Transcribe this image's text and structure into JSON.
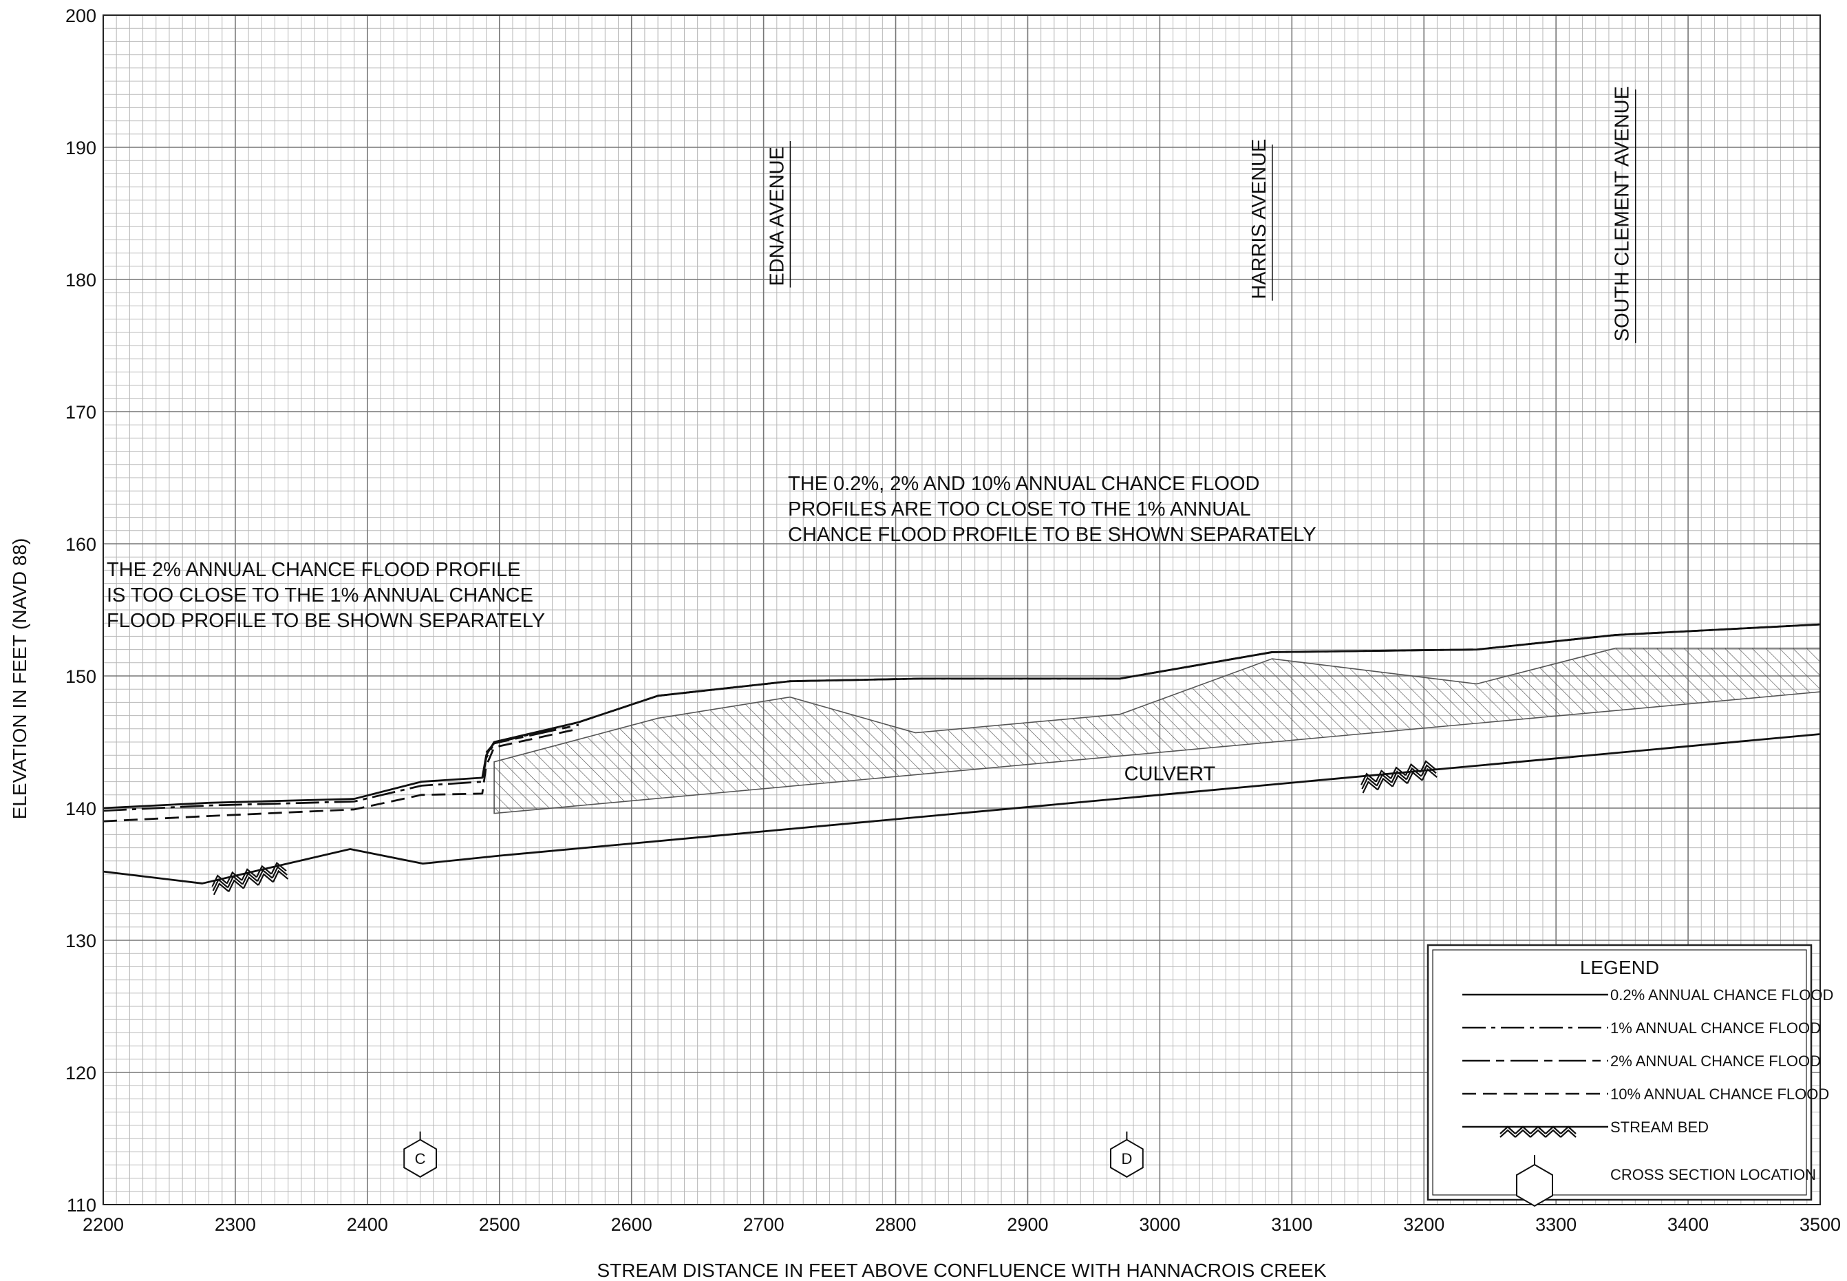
{
  "chart_data": {
    "type": "line",
    "xlabel": "STREAM DISTANCE IN FEET ABOVE CONFLUENCE WITH HANNACROIS CREEK",
    "ylabel": "ELEVATION IN FEET (NAVD 88)",
    "xlim": [
      2200,
      3500
    ],
    "ylim": [
      110,
      200
    ],
    "x_ticks": [
      "2200",
      "2300",
      "2400",
      "2500",
      "2600",
      "2700",
      "2800",
      "2900",
      "3000",
      "3100",
      "3200",
      "3300",
      "3400",
      "3500"
    ],
    "y_ticks": [
      "110",
      "120",
      "130",
      "140",
      "150",
      "160",
      "170",
      "180",
      "190",
      "200"
    ],
    "grid": true,
    "legend_position": "bottom-right",
    "series": [
      {
        "name": "0.2% ANNUAL CHANCE FLOOD",
        "style": "solid",
        "x": [
          2200,
          2280,
          2390,
          2441,
          2487,
          2490,
          2496,
          2560,
          2620,
          2720,
          2820,
          2970,
          3085,
          3240,
          3345,
          3500
        ],
        "y": [
          140.0,
          140.4,
          140.7,
          142.0,
          142.3,
          144.0,
          145.0,
          146.5,
          148.5,
          149.6,
          149.8,
          149.8,
          151.8,
          152.0,
          153.1,
          153.9
        ]
      },
      {
        "name": "1% ANNUAL CHANCE FLOOD",
        "style": "dash-dot",
        "x": [
          2200,
          2280,
          2390,
          2441,
          2487,
          2490,
          2496,
          2560,
          2620,
          2720,
          2820,
          2970,
          3085,
          3240,
          3345,
          3500
        ],
        "y": [
          139.8,
          140.2,
          140.5,
          141.7,
          142.0,
          143.8,
          144.9,
          146.5,
          148.5,
          149.6,
          149.8,
          149.8,
          151.8,
          152.0,
          153.1,
          153.9
        ]
      },
      {
        "name": "2% ANNUAL CHANCE FLOOD",
        "style": "long-dash-dot",
        "x": [
          2490,
          2496,
          2560
        ],
        "y": [
          144.2,
          144.9,
          146.3
        ]
      },
      {
        "name": "10% ANNUAL CHANCE FLOOD",
        "style": "dashed",
        "x": [
          2200,
          2280,
          2390,
          2441,
          2487,
          2490,
          2496,
          2560
        ],
        "y": [
          139.0,
          139.4,
          139.9,
          141.0,
          141.1,
          143.2,
          144.6,
          146.0
        ]
      },
      {
        "name": "STREAM BED",
        "style": "solid-bed",
        "x": [
          2200,
          2275,
          2387,
          2442,
          2500,
          3500
        ],
        "y": [
          135.2,
          134.3,
          136.9,
          135.8,
          136.4,
          145.6
        ]
      }
    ],
    "culvert": {
      "label": "CULVERT",
      "top_x": [
        2496,
        2620,
        2720,
        2815,
        2970,
        3085,
        3240,
        3345,
        3500
      ],
      "top_y": [
        143.5,
        146.8,
        148.4,
        145.7,
        147.1,
        151.3,
        149.4,
        152.1,
        152.1
      ],
      "bottom_x": [
        2496,
        3500
      ],
      "bottom_y": [
        139.6,
        148.8
      ]
    },
    "streets": [
      {
        "label": "EDNA AVENUE",
        "x": 2715
      },
      {
        "label": "HARRIS AVENUE",
        "x": 3080
      },
      {
        "label": "SOUTH CLEMENT AVENUE",
        "x": 3355
      }
    ],
    "cross_sections": [
      {
        "label": "C",
        "x": 2440
      },
      {
        "label": "D",
        "x": 2975
      }
    ],
    "annotations": [
      {
        "lines": [
          "THE 2% ANNUAL CHANCE FLOOD PROFILE",
          "IS TOO CLOSE TO THE 1% ANNUAL CHANCE",
          "FLOOD PROFILE TO BE SHOWN SEPARATELY"
        ]
      },
      {
        "lines": [
          "THE 0.2%, 2% AND 10% ANNUAL CHANCE FLOOD",
          "PROFILES ARE TOO CLOSE TO THE 1% ANNUAL",
          "CHANCE FLOOD PROFILE TO BE SHOWN SEPARATELY"
        ]
      }
    ],
    "legend": {
      "title": "LEGEND",
      "items": [
        "0.2% ANNUAL CHANCE FLOOD",
        "1% ANNUAL CHANCE FLOOD",
        "2% ANNUAL CHANCE FLOOD",
        "10% ANNUAL CHANCE FLOOD",
        "STREAM BED",
        "CROSS SECTION LOCATION"
      ]
    }
  }
}
